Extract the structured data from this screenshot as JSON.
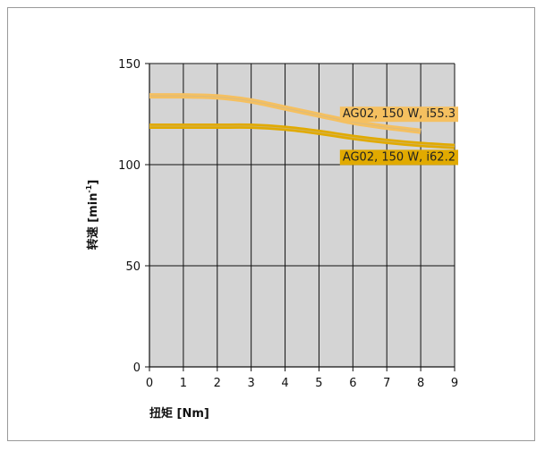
{
  "chart_data": {
    "type": "line",
    "xlabel": "扭矩 [Nm]",
    "ylabel": "转速 [min",
    "ylabel_sup": "-1",
    "ylabel_close": "]",
    "xlim": [
      0,
      9
    ],
    "ylim": [
      0,
      150
    ],
    "x_ticks": [
      0,
      1,
      2,
      3,
      4,
      5,
      6,
      7,
      8,
      9
    ],
    "y_ticks": [
      0,
      50,
      100,
      150
    ],
    "grid": true,
    "series": [
      {
        "name": "AG02, 150 W, i55.3",
        "color": "#f5c060",
        "x": [
          0,
          1,
          2,
          3,
          4,
          5,
          6,
          7,
          8
        ],
        "y": [
          134,
          134,
          133.5,
          131.5,
          128,
          124.5,
          121,
          118.5,
          116.5
        ]
      },
      {
        "name": "AG02, 150 W, i62.2",
        "color": "#e1aa00",
        "x": [
          0,
          1,
          2,
          3,
          4,
          5,
          6,
          7,
          8,
          9
        ],
        "y": [
          119,
          119,
          119,
          119,
          118,
          116,
          113.5,
          111.5,
          110,
          109
        ]
      }
    ]
  }
}
